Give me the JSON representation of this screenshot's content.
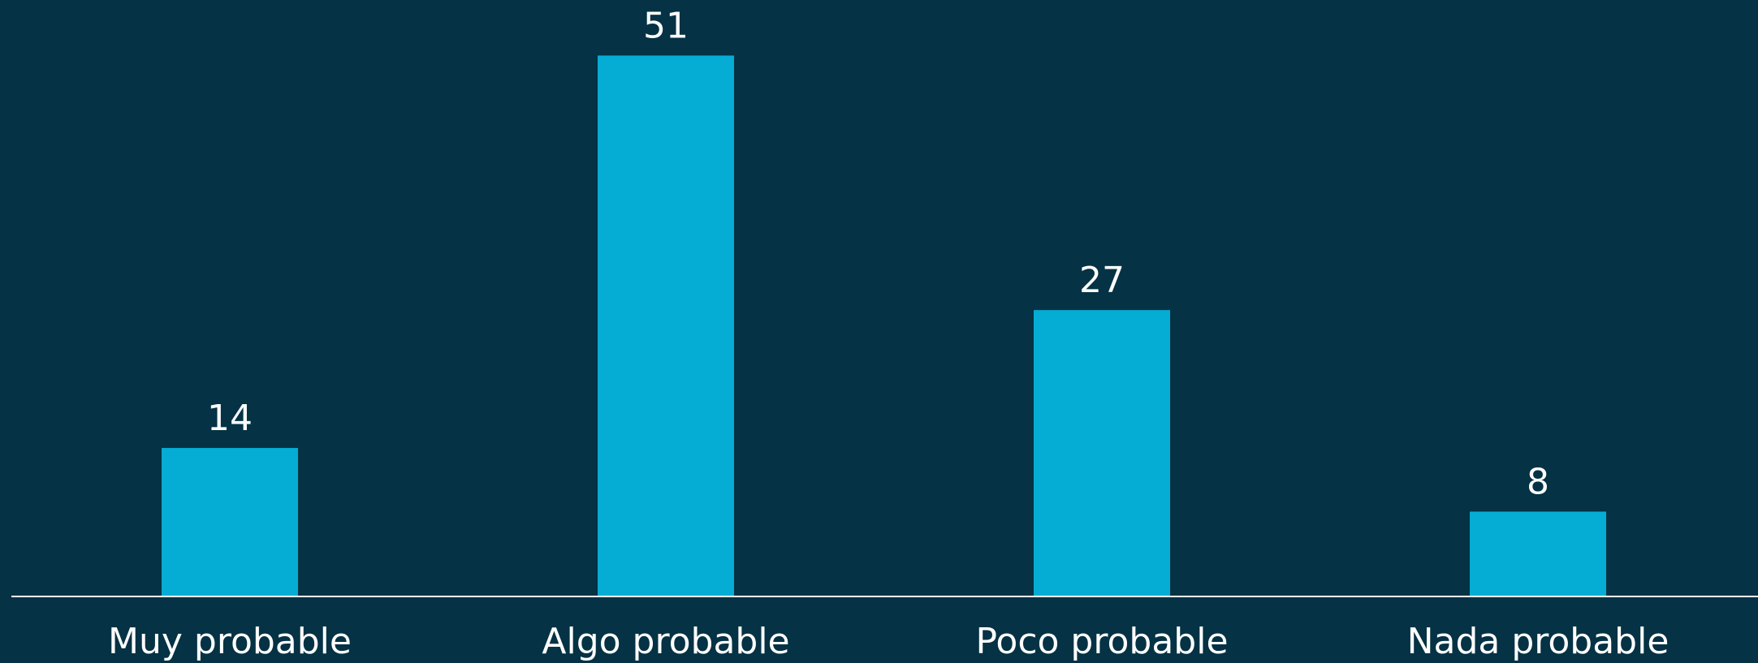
{
  "chart_data": {
    "type": "bar",
    "categories": [
      "Muy probable",
      "Algo probable",
      "Poco probable",
      "Nada probable"
    ],
    "values": [
      14,
      51,
      27,
      8
    ],
    "ylim": [
      0,
      56
    ],
    "grid": false,
    "legend": "none"
  },
  "colors": {
    "background": "#053244",
    "bar": "#05acd4",
    "axis": "#ffffff",
    "text": "#ffffff"
  }
}
